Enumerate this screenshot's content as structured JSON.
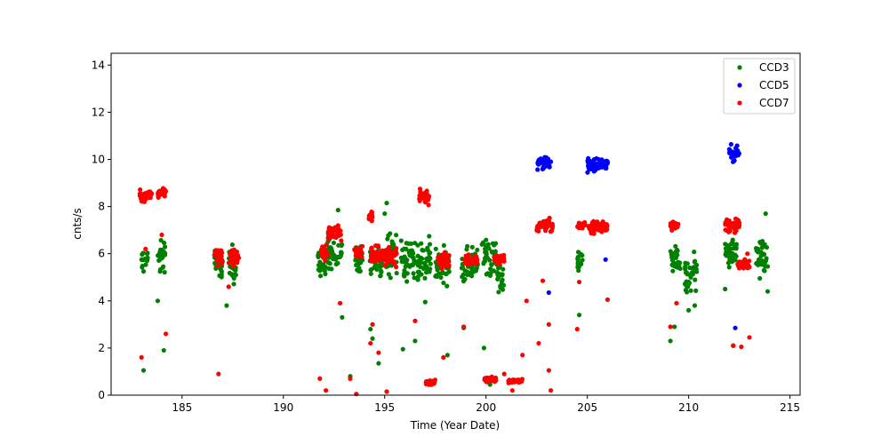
{
  "chart_data": {
    "type": "scatter",
    "title": "",
    "xlabel": "Time (Year Date)",
    "ylabel": "cnts/s",
    "xlim": [
      181.5,
      215.5
    ],
    "ylim": [
      0,
      14.5
    ],
    "xticks": [
      185,
      190,
      195,
      200,
      205,
      210,
      215
    ],
    "yticks": [
      0,
      2,
      4,
      6,
      8,
      10,
      12,
      14
    ],
    "grid": false,
    "legend_position": "top-right",
    "series": [
      {
        "name": "CCD3",
        "color": "#008000",
        "clusters": [
          {
            "x": [
              183.0,
              183.3
            ],
            "y": [
              5.0,
              6.6
            ]
          },
          {
            "x": [
              183.8,
              184.2
            ],
            "y": [
              4.9,
              6.9
            ]
          },
          {
            "x": [
              186.6,
              187.0
            ],
            "y": [
              4.7,
              6.4
            ]
          },
          {
            "x": [
              187.3,
              187.7
            ],
            "y": [
              4.5,
              6.6
            ]
          },
          {
            "x": [
              191.7,
              192.1
            ],
            "y": [
              4.6,
              6.6
            ]
          },
          {
            "x": [
              192.2,
              192.9
            ],
            "y": [
              4.8,
              7.0
            ]
          },
          {
            "x": [
              193.5,
              193.9
            ],
            "y": [
              4.9,
              6.9
            ]
          },
          {
            "x": [
              194.2,
              194.9
            ],
            "y": [
              4.6,
              6.8
            ]
          },
          {
            "x": [
              195.0,
              195.6
            ],
            "y": [
              4.7,
              7.4
            ]
          },
          {
            "x": [
              195.8,
              196.5
            ],
            "y": [
              4.5,
              6.7
            ]
          },
          {
            "x": [
              196.6,
              197.3
            ],
            "y": [
              4.4,
              7.0
            ]
          },
          {
            "x": [
              197.5,
              198.2
            ],
            "y": [
              4.3,
              6.6
            ]
          },
          {
            "x": [
              198.8,
              199.6
            ],
            "y": [
              4.4,
              6.7
            ]
          },
          {
            "x": [
              199.8,
              200.5
            ],
            "y": [
              4.7,
              7.0
            ]
          },
          {
            "x": [
              200.5,
              200.9
            ],
            "y": [
              4.2,
              6.0
            ]
          },
          {
            "x": [
              204.5,
              204.8
            ],
            "y": [
              4.9,
              6.4
            ]
          },
          {
            "x": [
              209.1,
              209.6
            ],
            "y": [
              4.9,
              6.5
            ]
          },
          {
            "x": [
              209.8,
              210.4
            ],
            "y": [
              3.9,
              6.3
            ]
          },
          {
            "x": [
              211.8,
              212.4
            ],
            "y": [
              5.1,
              7.0
            ]
          },
          {
            "x": [
              213.3,
              213.9
            ],
            "y": [
              4.7,
              7.0
            ]
          }
        ],
        "points": [
          [
            183.1,
            1.05
          ],
          [
            183.8,
            4.0
          ],
          [
            184.1,
            1.9
          ],
          [
            187.2,
            3.8
          ],
          [
            192.9,
            3.3
          ],
          [
            192.7,
            7.85
          ],
          [
            193.3,
            0.8
          ],
          [
            194.3,
            2.8
          ],
          [
            194.4,
            2.4
          ],
          [
            194.7,
            1.35
          ],
          [
            195.1,
            8.15
          ],
          [
            195.0,
            7.7
          ],
          [
            195.9,
            1.95
          ],
          [
            196.5,
            2.3
          ],
          [
            197.0,
            3.95
          ],
          [
            198.1,
            1.7
          ],
          [
            199.9,
            2.0
          ],
          [
            198.9,
            2.85
          ],
          [
            200.2,
            0.45
          ],
          [
            204.6,
            3.4
          ],
          [
            209.1,
            2.3
          ],
          [
            209.3,
            2.9
          ],
          [
            210.0,
            3.6
          ],
          [
            210.3,
            3.8
          ],
          [
            212.2,
            2.1
          ],
          [
            213.8,
            7.7
          ],
          [
            213.9,
            4.4
          ],
          [
            211.8,
            4.5
          ]
        ]
      },
      {
        "name": "CCD5",
        "color": "#0000ff",
        "clusters": [
          {
            "x": [
              202.5,
              203.2
            ],
            "y": [
              9.5,
              10.2
            ]
          },
          {
            "x": [
              205.0,
              206.0
            ],
            "y": [
              9.3,
              10.2
            ]
          },
          {
            "x": [
              212.0,
              212.5
            ],
            "y": [
              9.7,
              10.7
            ]
          }
        ],
        "points": [
          [
            203.1,
            4.35
          ],
          [
            205.9,
            5.75
          ],
          [
            212.3,
            2.85
          ]
        ]
      },
      {
        "name": "CCD7",
        "color": "#ff0000",
        "clusters": [
          {
            "x": [
              182.9,
              183.5
            ],
            "y": [
              8.1,
              8.8
            ]
          },
          {
            "x": [
              183.8,
              184.2
            ],
            "y": [
              8.2,
              8.9
            ]
          },
          {
            "x": [
              186.6,
              187.0
            ],
            "y": [
              5.4,
              6.4
            ]
          },
          {
            "x": [
              187.3,
              187.8
            ],
            "y": [
              5.3,
              6.4
            ]
          },
          {
            "x": [
              191.8,
              192.2
            ],
            "y": [
              5.4,
              6.5
            ]
          },
          {
            "x": [
              192.2,
              192.9
            ],
            "y": [
              6.5,
              7.3
            ]
          },
          {
            "x": [
              193.5,
              193.9
            ],
            "y": [
              5.6,
              6.6
            ]
          },
          {
            "x": [
              194.2,
              194.4
            ],
            "y": [
              7.2,
              8.0
            ]
          },
          {
            "x": [
              194.3,
              194.9
            ],
            "y": [
              5.4,
              6.5
            ]
          },
          {
            "x": [
              195.0,
              195.6
            ],
            "y": [
              5.3,
              6.5
            ]
          },
          {
            "x": [
              196.7,
              197.2
            ],
            "y": [
              7.9,
              8.9
            ]
          },
          {
            "x": [
              197.0,
              197.5
            ],
            "y": [
              0.4,
              0.7
            ]
          },
          {
            "x": [
              197.6,
              198.2
            ],
            "y": [
              5.3,
              6.1
            ]
          },
          {
            "x": [
              198.9,
              199.6
            ],
            "y": [
              5.4,
              6.0
            ]
          },
          {
            "x": [
              199.9,
              200.5
            ],
            "y": [
              0.5,
              0.8
            ]
          },
          {
            "x": [
              200.4,
              200.9
            ],
            "y": [
              5.5,
              6.1
            ]
          },
          {
            "x": [
              201.1,
              201.8
            ],
            "y": [
              0.5,
              0.7
            ]
          },
          {
            "x": [
              202.5,
              203.3
            ],
            "y": [
              6.8,
              7.6
            ]
          },
          {
            "x": [
              204.5,
              204.9
            ],
            "y": [
              7.0,
              7.4
            ]
          },
          {
            "x": [
              205.0,
              206.0
            ],
            "y": [
              6.8,
              7.5
            ]
          },
          {
            "x": [
              209.1,
              209.5
            ],
            "y": [
              6.9,
              7.5
            ]
          },
          {
            "x": [
              211.8,
              212.5
            ],
            "y": [
              6.8,
              7.6
            ]
          },
          {
            "x": [
              212.4,
              213.0
            ],
            "y": [
              5.3,
              5.8
            ]
          }
        ],
        "points": [
          [
            183.0,
            1.6
          ],
          [
            183.2,
            6.2
          ],
          [
            184.0,
            6.8
          ],
          [
            184.2,
            2.6
          ],
          [
            186.8,
            0.9
          ],
          [
            187.3,
            4.6
          ],
          [
            191.8,
            0.7
          ],
          [
            192.1,
            0.2
          ],
          [
            192.8,
            3.9
          ],
          [
            193.3,
            0.7
          ],
          [
            193.6,
            0.05
          ],
          [
            194.3,
            2.2
          ],
          [
            194.4,
            3.0
          ],
          [
            194.7,
            1.8
          ],
          [
            195.1,
            0.15
          ],
          [
            196.5,
            3.15
          ],
          [
            197.9,
            1.6
          ],
          [
            198.9,
            2.9
          ],
          [
            200.9,
            0.9
          ],
          [
            201.3,
            0.2
          ],
          [
            201.8,
            1.7
          ],
          [
            202.0,
            4.0
          ],
          [
            202.6,
            2.2
          ],
          [
            202.8,
            4.85
          ],
          [
            203.1,
            3.0
          ],
          [
            203.1,
            1.05
          ],
          [
            203.2,
            0.2
          ],
          [
            204.5,
            2.8
          ],
          [
            204.6,
            4.8
          ],
          [
            206.0,
            4.05
          ],
          [
            209.1,
            2.9
          ],
          [
            209.4,
            3.9
          ],
          [
            212.2,
            2.1
          ],
          [
            212.6,
            2.05
          ],
          [
            213.0,
            2.45
          ],
          [
            212.9,
            6.0
          ]
        ]
      }
    ]
  }
}
